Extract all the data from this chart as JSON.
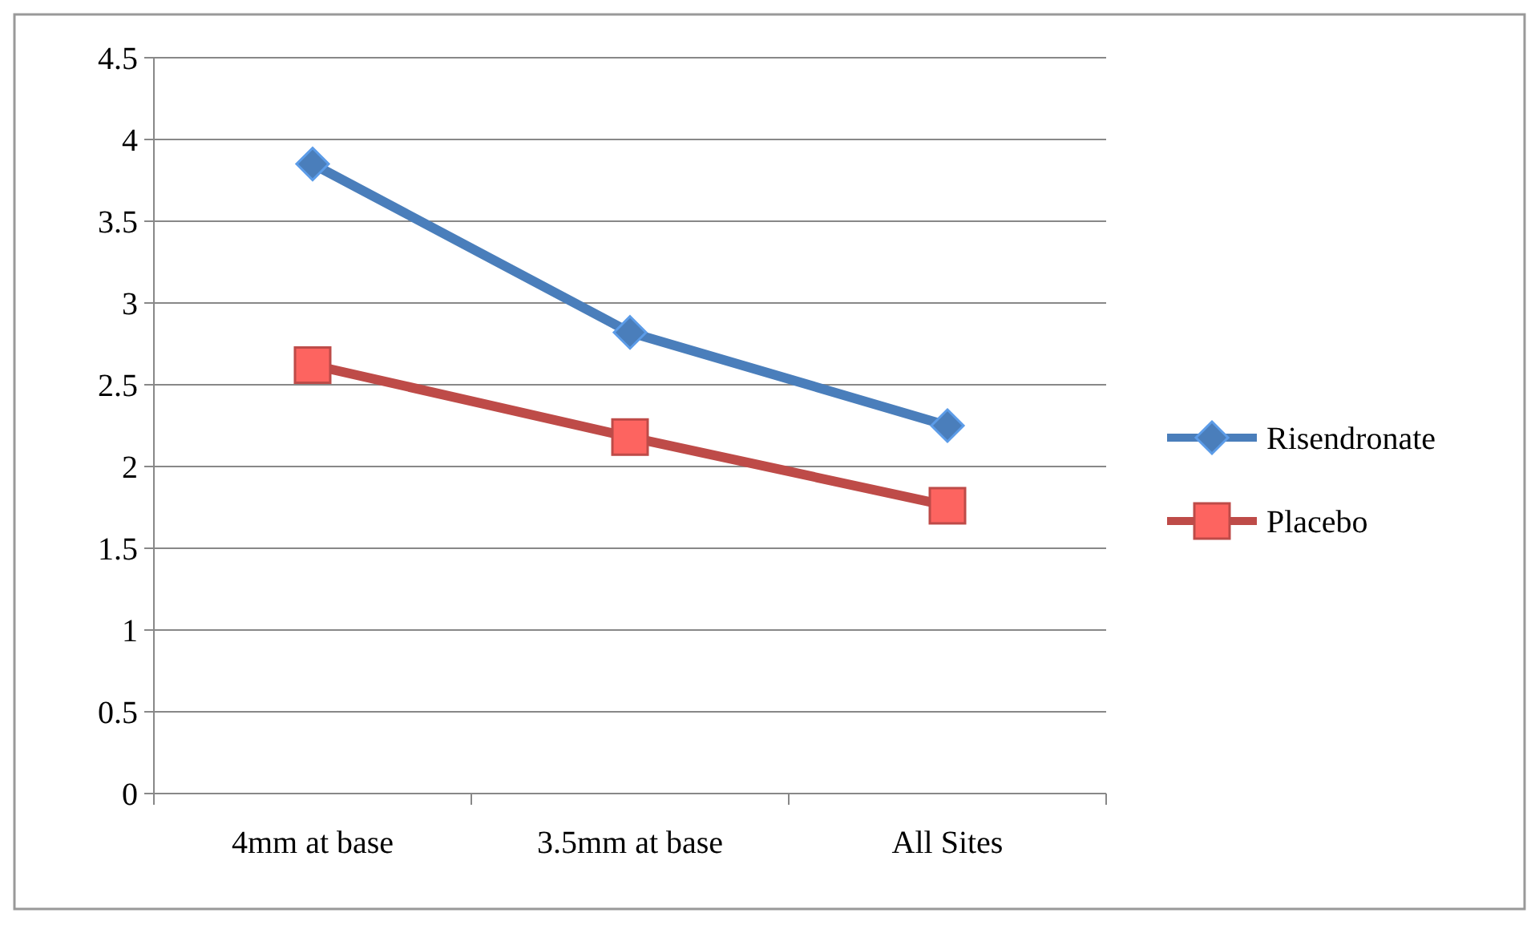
{
  "chart_data": {
    "type": "line",
    "categories": [
      "4mm at base",
      "3.5mm at base",
      "All Sites"
    ],
    "series": [
      {
        "name": "Risendronate",
        "color": "#4a7ebb",
        "values": [
          3.85,
          2.82,
          2.25
        ],
        "marker": "diamond"
      },
      {
        "name": "Placebo",
        "color": "#be4b48",
        "values": [
          2.62,
          2.18,
          1.76
        ],
        "marker": "square"
      }
    ],
    "ylim": [
      0,
      4.5
    ],
    "yticks": [
      0,
      0.5,
      1,
      1.5,
      2,
      2.5,
      3,
      3.5,
      4,
      4.5
    ],
    "grid": "y",
    "legend": "right"
  }
}
